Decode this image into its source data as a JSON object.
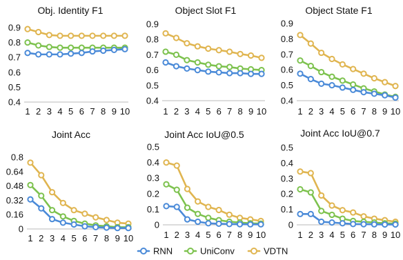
{
  "chart_data": [
    {
      "type": "line",
      "title": "Obj. Identity F1",
      "x": [
        1,
        2,
        3,
        4,
        5,
        6,
        7,
        8,
        9,
        10
      ],
      "ylim": [
        0.4,
        0.9
      ],
      "yticks": [
        "0.9",
        "0.8",
        "0.7",
        "0.6",
        "0.5",
        "0.4"
      ],
      "ytick_values": [
        0.9,
        0.8,
        0.7,
        0.6,
        0.5,
        0.4
      ],
      "grid": false,
      "series": [
        {
          "name": "RNN",
          "values": [
            0.73,
            0.72,
            0.72,
            0.72,
            0.725,
            0.73,
            0.74,
            0.745,
            0.75,
            0.755
          ]
        },
        {
          "name": "UniConv",
          "values": [
            0.8,
            0.78,
            0.77,
            0.765,
            0.765,
            0.765,
            0.765,
            0.765,
            0.765,
            0.765
          ]
        },
        {
          "name": "VDTN",
          "values": [
            0.89,
            0.87,
            0.85,
            0.845,
            0.845,
            0.845,
            0.845,
            0.845,
            0.845,
            0.845
          ]
        }
      ]
    },
    {
      "type": "line",
      "title": "Object Slot F1",
      "x": [
        1,
        2,
        3,
        4,
        5,
        6,
        7,
        8,
        9,
        10
      ],
      "ylim": [
        0.4,
        0.9
      ],
      "yticks": [
        "0.9",
        "0.8",
        "0.7",
        "0.6",
        "0.5",
        "0.4"
      ],
      "ytick_values": [
        0.9,
        0.8,
        0.7,
        0.6,
        0.5,
        0.4
      ],
      "grid": false,
      "series": [
        {
          "name": "RNN",
          "values": [
            0.65,
            0.625,
            0.61,
            0.6,
            0.59,
            0.585,
            0.58,
            0.58,
            0.575,
            0.575
          ]
        },
        {
          "name": "UniConv",
          "values": [
            0.72,
            0.7,
            0.665,
            0.65,
            0.635,
            0.625,
            0.62,
            0.61,
            0.605,
            0.6
          ]
        },
        {
          "name": "VDTN",
          "values": [
            0.84,
            0.81,
            0.775,
            0.755,
            0.74,
            0.73,
            0.72,
            0.705,
            0.695,
            0.68
          ]
        }
      ]
    },
    {
      "type": "line",
      "title": "Object State F1",
      "x": [
        1,
        2,
        3,
        4,
        5,
        6,
        7,
        8,
        9,
        10
      ],
      "ylim": [
        0.4,
        0.9
      ],
      "yticks": [
        "0.9",
        "0.8",
        "0.7",
        "0.6",
        "0.5",
        "0.4"
      ],
      "ytick_values": [
        0.9,
        0.8,
        0.7,
        0.6,
        0.5,
        0.4
      ],
      "grid": false,
      "series": [
        {
          "name": "RNN",
          "values": [
            0.575,
            0.54,
            0.51,
            0.5,
            0.485,
            0.47,
            0.455,
            0.445,
            0.435,
            0.42
          ]
        },
        {
          "name": "UniConv",
          "values": [
            0.66,
            0.625,
            0.585,
            0.555,
            0.53,
            0.505,
            0.48,
            0.46,
            0.44,
            0.425
          ]
        },
        {
          "name": "VDTN",
          "values": [
            0.825,
            0.77,
            0.71,
            0.67,
            0.635,
            0.605,
            0.575,
            0.545,
            0.52,
            0.495
          ]
        }
      ]
    },
    {
      "type": "line",
      "title": "Joint Acc",
      "x": [
        1,
        2,
        3,
        4,
        5,
        6,
        7,
        8,
        9,
        10
      ],
      "ylim": [
        0,
        0.8
      ],
      "yticks": [
        "0.8",
        "0.64",
        "0.48",
        "0.32",
        "0.16",
        "0"
      ],
      "ytick_values": [
        0.8,
        0.64,
        0.48,
        0.32,
        0.16,
        0
      ],
      "grid": false,
      "series": [
        {
          "name": "RNN",
          "values": [
            0.33,
            0.23,
            0.11,
            0.07,
            0.05,
            0.03,
            0.02,
            0.015,
            0.01,
            0.01
          ]
        },
        {
          "name": "UniConv",
          "values": [
            0.49,
            0.37,
            0.21,
            0.14,
            0.09,
            0.06,
            0.04,
            0.03,
            0.02,
            0.02
          ]
        },
        {
          "name": "VDTN",
          "values": [
            0.74,
            0.6,
            0.41,
            0.29,
            0.21,
            0.17,
            0.13,
            0.1,
            0.07,
            0.06
          ]
        }
      ]
    },
    {
      "type": "line",
      "title": "Joint Acc IoU@0.5",
      "x": [
        1,
        2,
        3,
        4,
        5,
        6,
        7,
        8,
        9,
        10
      ],
      "ylim": [
        0,
        0.5
      ],
      "yticks": [
        "0.5",
        "0.4",
        "0.3",
        "0.2",
        "0.1",
        "0"
      ],
      "ytick_values": [
        0.5,
        0.4,
        0.3,
        0.2,
        0.1,
        0
      ],
      "grid": false,
      "series": [
        {
          "name": "RNN",
          "values": [
            0.12,
            0.115,
            0.035,
            0.02,
            0.01,
            0.007,
            0.005,
            0.004,
            0.003,
            0.003
          ]
        },
        {
          "name": "UniConv",
          "values": [
            0.26,
            0.225,
            0.11,
            0.07,
            0.045,
            0.03,
            0.02,
            0.015,
            0.01,
            0.008
          ]
        },
        {
          "name": "VDTN",
          "values": [
            0.4,
            0.38,
            0.23,
            0.15,
            0.115,
            0.095,
            0.065,
            0.045,
            0.035,
            0.025
          ]
        }
      ]
    },
    {
      "type": "line",
      "title": "Joint Acc IoU@0.7",
      "x": [
        1,
        2,
        3,
        4,
        5,
        6,
        7,
        8,
        9,
        10
      ],
      "ylim": [
        0,
        0.5
      ],
      "yticks": [
        "0.5",
        "0.4",
        "0.3",
        "0.2",
        "0.1",
        "0"
      ],
      "ytick_values": [
        0.5,
        0.4,
        0.3,
        0.2,
        0.1,
        0
      ],
      "grid": false,
      "series": [
        {
          "name": "RNN",
          "values": [
            0.07,
            0.07,
            0.02,
            0.015,
            0.01,
            0.005,
            0.004,
            0.003,
            0.002,
            0.002
          ]
        },
        {
          "name": "UniConv",
          "values": [
            0.23,
            0.21,
            0.09,
            0.065,
            0.04,
            0.025,
            0.02,
            0.015,
            0.01,
            0.008
          ]
        },
        {
          "name": "VDTN",
          "values": [
            0.345,
            0.335,
            0.19,
            0.125,
            0.095,
            0.08,
            0.055,
            0.04,
            0.03,
            0.02
          ]
        }
      ]
    }
  ],
  "legend": {
    "placement": "bottom-center",
    "items": [
      {
        "label": "RNN",
        "color": "#4a8ad8"
      },
      {
        "label": "UniConv",
        "color": "#7dc24e"
      },
      {
        "label": "VDTN",
        "color": "#e0b550"
      }
    ]
  },
  "colors": {
    "RNN": "#4a8ad8",
    "UniConv": "#7dc24e",
    "VDTN": "#e0b550",
    "axis": "#b9b9b9"
  }
}
